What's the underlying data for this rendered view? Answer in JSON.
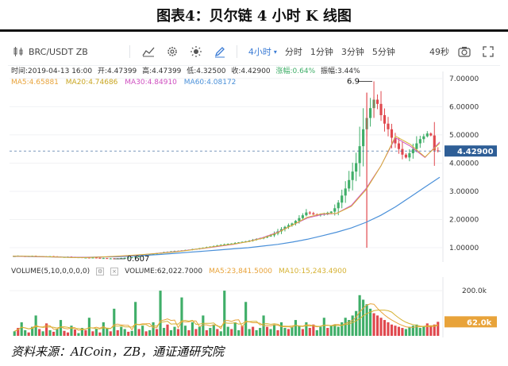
{
  "figure_title": "图表4：贝尔链 4 小时 K 线图",
  "source_note": "资料来源：AICoin，ZB，通证通研究院",
  "toolbar": {
    "pair": "BRC/USDT ZB",
    "interval_selected": "4小时",
    "intervals": [
      "分时",
      "1分钟",
      "3分钟",
      "5分钟"
    ],
    "countdown": "49秒"
  },
  "info_line": {
    "time": "时间:2019-04-13 16:00",
    "open": "开:4.47399",
    "high": "高:4.47399",
    "low": "低:4.32500",
    "close": "收:4.42900",
    "change": "涨幅:0.64%",
    "amplitude": "振幅:3.44%"
  },
  "ma_line": {
    "ma5": "MA5:4.65881",
    "ma20": "MA20:4.74686",
    "ma30": "MA30:4.84910",
    "ma60": "MA60:4.08172"
  },
  "volume_legend": {
    "label": "VOLUME(5,10,0,0,0,0)",
    "volume": "VOLUME:62,022.7000",
    "ma5": "MA5:23,841.5000",
    "ma10": "MA10:15,243.4900"
  },
  "colors": {
    "up": "#3fae68",
    "down": "#e0484e",
    "ma5": "#e8a33a",
    "ma20": "#d6b233",
    "ma30": "#cf4fc0",
    "ma60": "#4a90d9",
    "price_tag": "#2e5e96",
    "vol_tag": "#e8a33a"
  },
  "chart_data": [
    {
      "type": "candlestick",
      "title": "",
      "y_axis_ticks": [
        "7.00000",
        "6.00000",
        "5.00000",
        "4.00000",
        "3.00000",
        "2.00000",
        "1.00000"
      ],
      "ylim": [
        0.55,
        7.25
      ],
      "current_price_label": "4.42900",
      "annotations": {
        "high_label": "6.9",
        "low_label": "0.607"
      },
      "high": 6.9,
      "low": 0.607,
      "last": 4.429,
      "series_close": [
        0.7,
        0.71,
        0.7,
        0.69,
        0.7,
        0.71,
        0.7,
        0.69,
        0.68,
        0.69,
        0.7,
        0.69,
        0.68,
        0.67,
        0.67,
        0.68,
        0.67,
        0.66,
        0.66,
        0.65,
        0.65,
        0.64,
        0.65,
        0.64,
        0.63,
        0.63,
        0.62,
        0.62,
        0.61,
        0.62,
        0.63,
        0.64,
        0.65,
        0.66,
        0.68,
        0.7,
        0.72,
        0.74,
        0.76,
        0.78,
        0.8,
        0.82,
        0.84,
        0.85,
        0.87,
        0.88,
        0.89,
        0.9,
        0.92,
        0.93,
        0.95,
        0.96,
        0.98,
        1.0,
        1.02,
        1.04,
        1.06,
        1.08,
        1.1,
        1.12,
        1.14,
        1.15,
        1.17,
        1.19,
        1.21,
        1.23,
        1.25,
        1.28,
        1.31,
        1.33,
        1.36,
        1.4,
        1.44,
        1.5,
        1.58,
        1.66,
        1.74,
        1.8,
        1.86,
        1.95,
        2.05,
        2.15,
        2.25,
        2.22,
        2.18,
        2.15,
        2.18,
        2.2,
        2.24,
        2.28,
        2.4,
        2.6,
        2.85,
        3.1,
        3.4,
        3.7,
        4.0,
        4.6,
        5.2,
        5.6,
        5.95,
        6.25,
        6.1,
        5.7,
        5.4,
        5.2,
        4.9,
        4.7,
        4.5,
        4.3,
        4.2,
        4.35,
        4.5,
        4.7,
        4.85,
        4.95,
        5.05,
        4.98,
        4.45,
        4.43
      ],
      "ma60_points": [
        0.7,
        0.69,
        0.68,
        0.67,
        0.66,
        0.66,
        0.67,
        0.68,
        0.7,
        0.73,
        0.76,
        0.8,
        0.84,
        0.88,
        0.92,
        0.96,
        1.0,
        1.06,
        1.12,
        1.2,
        1.3,
        1.42,
        1.55,
        1.7,
        1.9,
        2.15,
        2.45,
        2.8,
        3.15,
        3.5
      ],
      "ma_other_points": [
        0.7,
        0.69,
        0.68,
        0.67,
        0.66,
        0.66,
        0.67,
        0.69,
        0.72,
        0.76,
        0.81,
        0.86,
        0.92,
        0.98,
        1.05,
        1.12,
        1.22,
        1.36,
        1.55,
        1.8,
        2.05,
        2.18,
        2.22,
        2.5,
        3.1,
        3.9,
        4.9,
        4.6,
        4.2,
        4.75
      ]
    },
    {
      "type": "bar",
      "title": "",
      "y_axis_ticks": [
        "200.0k"
      ],
      "current_volume_label": "62.0k",
      "ylim": [
        0,
        260
      ],
      "values_k": [
        20,
        35,
        60,
        25,
        15,
        40,
        90,
        30,
        20,
        55,
        25,
        18,
        30,
        70,
        22,
        15,
        45,
        28,
        12,
        35,
        25,
        80,
        20,
        30,
        15,
        60,
        35,
        20,
        120,
        25,
        40,
        30,
        18,
        22,
        150,
        30,
        45,
        20,
        25,
        60,
        30,
        200,
        35,
        50,
        25,
        40,
        30,
        170,
        45,
        25,
        60,
        30,
        40,
        90,
        25,
        35,
        50,
        30,
        20,
        200,
        40,
        30,
        60,
        25,
        45,
        150,
        30,
        40,
        25,
        35,
        90,
        40,
        30,
        50,
        25,
        60,
        35,
        30,
        40,
        70,
        45,
        30,
        60,
        35,
        50,
        25,
        40,
        80,
        35,
        45,
        50,
        40,
        60,
        80,
        70,
        90,
        110,
        180,
        160,
        140,
        120,
        100,
        90,
        80,
        70,
        60,
        50,
        45,
        40,
        35,
        30,
        40,
        45,
        50,
        35,
        40,
        55,
        45,
        50,
        62
      ],
      "up_flags": [
        1,
        0,
        1,
        1,
        0,
        1,
        1,
        0,
        1,
        0,
        1,
        0,
        1,
        1,
        0,
        0,
        1,
        0,
        1,
        1,
        0,
        1,
        0,
        1,
        0,
        1,
        1,
        0,
        1,
        0,
        1,
        1,
        0,
        1,
        1,
        0,
        1,
        0,
        1,
        1,
        0,
        1,
        1,
        0,
        1,
        1,
        0,
        1,
        1,
        0,
        1,
        0,
        1,
        1,
        0,
        1,
        1,
        0,
        1,
        1,
        1,
        0,
        1,
        1,
        0,
        1,
        1,
        0,
        1,
        1,
        1,
        0,
        1,
        1,
        0,
        1,
        1,
        0,
        1,
        1,
        1,
        0,
        1,
        0,
        0,
        1,
        1,
        1,
        0,
        1,
        1,
        1,
        1,
        1,
        1,
        1,
        1,
        1,
        1,
        1,
        1,
        0,
        0,
        0,
        0,
        0,
        0,
        0,
        0,
        0,
        1,
        1,
        1,
        1,
        1,
        1,
        0,
        0,
        0,
        0
      ]
    }
  ]
}
